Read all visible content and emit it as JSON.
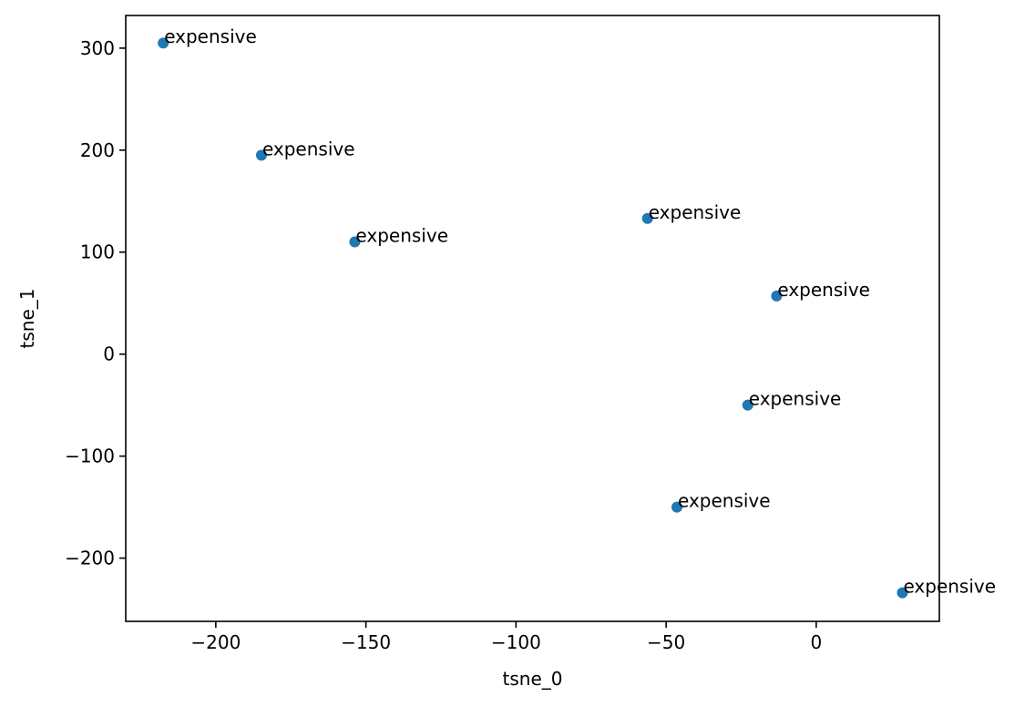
{
  "chart_data": {
    "type": "scatter",
    "title": "",
    "xlabel": "tsne_0",
    "ylabel": "tsne_1",
    "xlim": [
      -230,
      41
    ],
    "ylim": [
      -262,
      332
    ],
    "grid": false,
    "marker_color": "#1f77b4",
    "x_ticks": [
      {
        "value": -200,
        "label": "−200"
      },
      {
        "value": -150,
        "label": "−150"
      },
      {
        "value": -100,
        "label": "−100"
      },
      {
        "value": -50,
        "label": "−50"
      },
      {
        "value": 0,
        "label": "0"
      }
    ],
    "y_ticks": [
      {
        "value": 300,
        "label": "300"
      },
      {
        "value": 200,
        "label": "200"
      },
      {
        "value": 100,
        "label": "100"
      },
      {
        "value": 0,
        "label": "0"
      },
      {
        "value": -100,
        "label": "−100"
      },
      {
        "value": -200,
        "label": "−200"
      }
    ],
    "points": [
      {
        "x": -217.5,
        "y": 305,
        "label": "expensive"
      },
      {
        "x": -184.8,
        "y": 195,
        "label": "expensive"
      },
      {
        "x": -153.7,
        "y": 110,
        "label": "expensive"
      },
      {
        "x": -56.2,
        "y": 133,
        "label": "expensive"
      },
      {
        "x": -13.2,
        "y": 57,
        "label": "expensive"
      },
      {
        "x": -22.8,
        "y": -50,
        "label": "expensive"
      },
      {
        "x": -46.4,
        "y": -150,
        "label": "expensive"
      },
      {
        "x": 28.7,
        "y": -234,
        "label": "expensive"
      }
    ]
  }
}
